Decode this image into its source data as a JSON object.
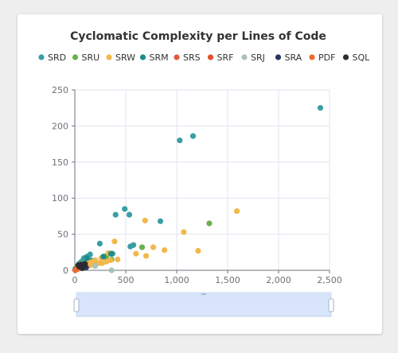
{
  "chart_data": {
    "type": "scatter",
    "title": "Cyclomatic Complexity per Lines of Code",
    "xlabel": "",
    "ylabel": "",
    "xlim": [
      0,
      2500
    ],
    "ylim": [
      0,
      250
    ],
    "x_ticks": [
      0,
      500,
      1000,
      1500,
      2000,
      2500
    ],
    "y_ticks": [
      0,
      50,
      100,
      150,
      200,
      250
    ],
    "x_tick_labels": [
      "0",
      "500",
      "1,000",
      "1,500",
      "2,000",
      "2,500"
    ],
    "y_tick_labels": [
      "0",
      "50",
      "100",
      "150",
      "200",
      "250"
    ],
    "grid": true,
    "legend_position": "top",
    "series": [
      {
        "name": "SRD",
        "color": "#3a9ea5",
        "points": [
          [
            2410,
            225
          ],
          [
            1160,
            186
          ],
          [
            1030,
            180
          ],
          [
            490,
            85
          ],
          [
            535,
            77
          ],
          [
            400,
            77
          ],
          [
            840,
            68
          ],
          [
            245,
            37
          ],
          [
            545,
            33
          ],
          [
            575,
            35
          ],
          [
            370,
            23
          ],
          [
            300,
            18
          ],
          [
            150,
            22
          ],
          [
            120,
            19
          ],
          [
            90,
            17
          ],
          [
            80,
            14
          ],
          [
            55,
            11
          ],
          [
            40,
            9
          ],
          [
            28,
            6
          ],
          [
            15,
            4
          ],
          [
            10,
            3
          ],
          [
            5,
            2
          ],
          [
            160,
            14
          ],
          [
            200,
            11
          ],
          [
            70,
            8
          ]
        ]
      },
      {
        "name": "SRU",
        "color": "#6ab04c",
        "points": [
          [
            1320,
            65
          ],
          [
            660,
            32
          ],
          [
            360,
            15
          ],
          [
            310,
            20
          ],
          [
            130,
            13
          ],
          [
            60,
            9
          ],
          [
            30,
            6
          ],
          [
            20,
            4
          ]
        ]
      },
      {
        "name": "SRW",
        "color": "#f2b84b",
        "points": [
          [
            1590,
            82
          ],
          [
            1070,
            53
          ],
          [
            880,
            28
          ],
          [
            770,
            32
          ],
          [
            700,
            20
          ],
          [
            600,
            23
          ],
          [
            690,
            69
          ],
          [
            1210,
            27
          ],
          [
            390,
            40
          ],
          [
            420,
            15
          ],
          [
            330,
            24
          ],
          [
            310,
            12
          ],
          [
            270,
            10
          ],
          [
            240,
            10
          ],
          [
            180,
            12
          ],
          [
            170,
            9
          ],
          [
            150,
            7
          ],
          [
            130,
            6
          ],
          [
            110,
            9
          ],
          [
            100,
            5
          ],
          [
            80,
            4
          ],
          [
            260,
            17
          ],
          [
            350,
            14
          ],
          [
            200,
            14
          ],
          [
            140,
            11
          ]
        ]
      },
      {
        "name": "SRM",
        "color": "#1f8a8a",
        "points": [
          [
            355,
            23
          ],
          [
            280,
            19
          ],
          [
            120,
            17
          ],
          [
            80,
            8
          ],
          [
            50,
            6
          ],
          [
            30,
            4
          ]
        ]
      },
      {
        "name": "SRS",
        "color": "#e05c3e",
        "points": [
          [
            40,
            3
          ],
          [
            20,
            2
          ],
          [
            60,
            4
          ]
        ]
      },
      {
        "name": "SRF",
        "color": "#e0522d",
        "points": [
          [
            15,
            1
          ],
          [
            30,
            2
          ]
        ]
      },
      {
        "name": "SRJ",
        "color": "#a8c4b8",
        "points": [
          [
            360,
            0
          ],
          [
            200,
            6
          ],
          [
            100,
            5
          ]
        ]
      },
      {
        "name": "SRA",
        "color": "#263a5e",
        "points": [
          [
            70,
            3
          ],
          [
            50,
            5
          ],
          [
            90,
            7
          ],
          [
            110,
            4
          ]
        ]
      },
      {
        "name": "PDF",
        "color": "#ee6a2d",
        "points": [
          [
            10,
            1
          ],
          [
            25,
            2
          ],
          [
            5,
            0
          ]
        ]
      },
      {
        "name": "SQL",
        "color": "#2e2a33",
        "points": [
          [
            60,
            8
          ],
          [
            90,
            6
          ],
          [
            75,
            3
          ],
          [
            45,
            5
          ],
          [
            35,
            7
          ],
          [
            100,
            9
          ]
        ]
      }
    ]
  },
  "datazoom": {
    "start_percent": 0,
    "end_percent": 100
  }
}
